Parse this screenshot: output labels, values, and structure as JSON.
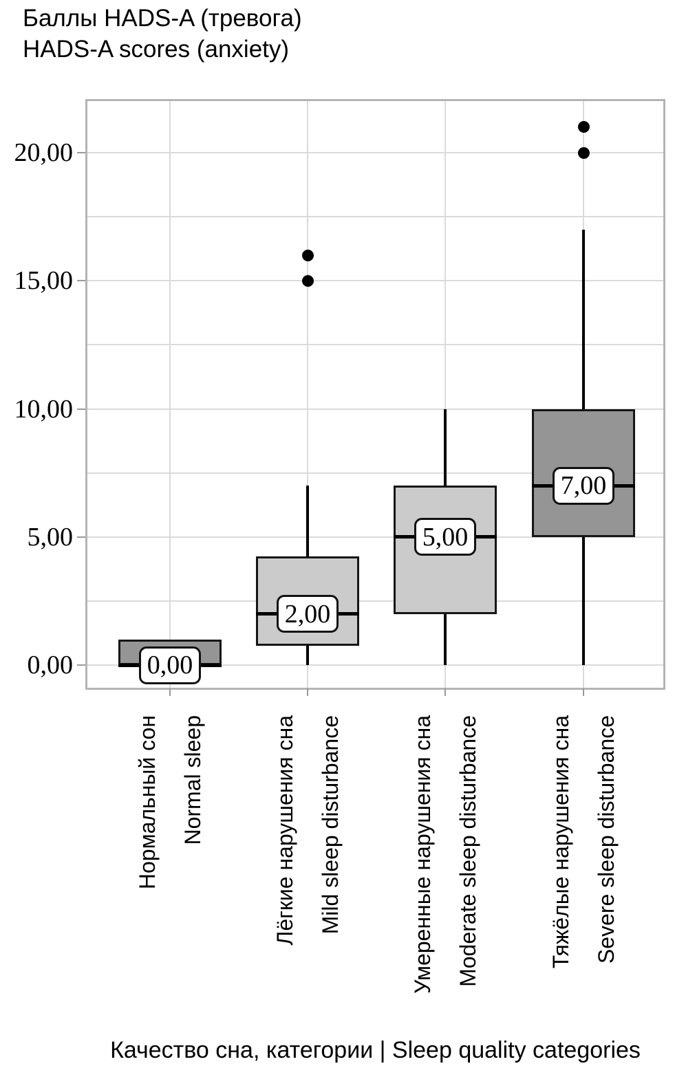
{
  "title": {
    "line1": "Баллы HADS-A (тревога)",
    "line2": "HADS-A scores (anxiety)"
  },
  "x_axis_title": "Качество сна, категории | Sleep quality categories",
  "colors": {
    "box_fill_dark": "#959595",
    "box_fill_light": "#cbcbcb",
    "gridline": "#dadada",
    "plot_border": "#b4b4b4",
    "tick": "#9a9a9a",
    "line": "#000000",
    "chip_fill": "#ffffff"
  },
  "chart_data": {
    "type": "boxplot",
    "title": "Баллы HADS-A (тревога) | HADS-A scores (anxiety)",
    "xlabel": "Качество сна, категории | Sleep quality categories",
    "ylabel": "",
    "ylim": [
      -0.9,
      22.1
    ],
    "grid_step": 2.5,
    "grid": "on",
    "yticks": [
      {
        "value": 0,
        "label": "0,00"
      },
      {
        "value": 5,
        "label": "5,00"
      },
      {
        "value": 10,
        "label": "10,00"
      },
      {
        "value": 15,
        "label": "15,00"
      },
      {
        "value": 20,
        "label": "20,00"
      }
    ],
    "categories": [
      {
        "label_ru": "Нормальный сон",
        "label_en": "Normal sleep",
        "q1": 0,
        "median": 0,
        "q3": 1,
        "whisker_low": 0,
        "whisker_high": 1,
        "outliers": [],
        "median_label": "0,00",
        "shade": "dark"
      },
      {
        "label_ru": "Лёгкие нарушения сна",
        "label_en": "Mild sleep disturbance",
        "q1": 0.75,
        "median": 2,
        "q3": 4.25,
        "whisker_low": 0,
        "whisker_high": 7,
        "outliers": [
          15,
          16
        ],
        "median_label": "2,00",
        "shade": "light"
      },
      {
        "label_ru": "Умеренные нарушения сна",
        "label_en": "Moderate sleep disturbance",
        "q1": 2,
        "median": 5,
        "q3": 7,
        "whisker_low": 0,
        "whisker_high": 10,
        "outliers": [],
        "median_label": "5,00",
        "shade": "light"
      },
      {
        "label_ru": "Тяжёлые нарушения сна",
        "label_en": "Severe sleep disturbance",
        "q1": 5,
        "median": 7,
        "q3": 10,
        "whisker_low": 0,
        "whisker_high": 17,
        "outliers": [
          20,
          21
        ],
        "median_label": "7,00",
        "shade": "dark"
      }
    ]
  }
}
